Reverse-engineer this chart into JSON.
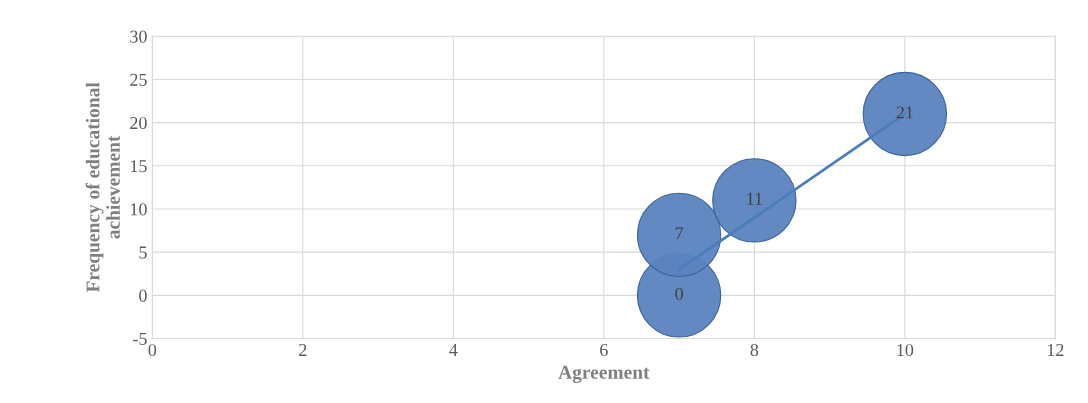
{
  "chart_data": {
    "type": "bubble",
    "xlabel": "Agreement",
    "ylabel": "Frequency of educational\nachievement",
    "series": [
      {
        "color": "#5b83c0",
        "x": [
          7,
          7,
          8,
          10
        ],
        "values": [
          0,
          7,
          11,
          21
        ],
        "sizes": [
          1,
          1,
          1,
          1
        ],
        "value_labels": [
          "0",
          "7",
          "11",
          "21"
        ]
      },
      {
        "type": "line",
        "color": "#4a7ebb",
        "x": [
          7,
          10
        ],
        "values": [
          3,
          21
        ]
      }
    ],
    "xlim": [
      0,
      12
    ],
    "xticks": [
      0,
      2,
      4,
      6,
      8,
      10,
      12
    ],
    "ylim": [
      -5,
      30
    ],
    "yticks": [
      -5,
      0,
      5,
      10,
      15,
      20,
      25,
      30
    ],
    "grid": true
  }
}
